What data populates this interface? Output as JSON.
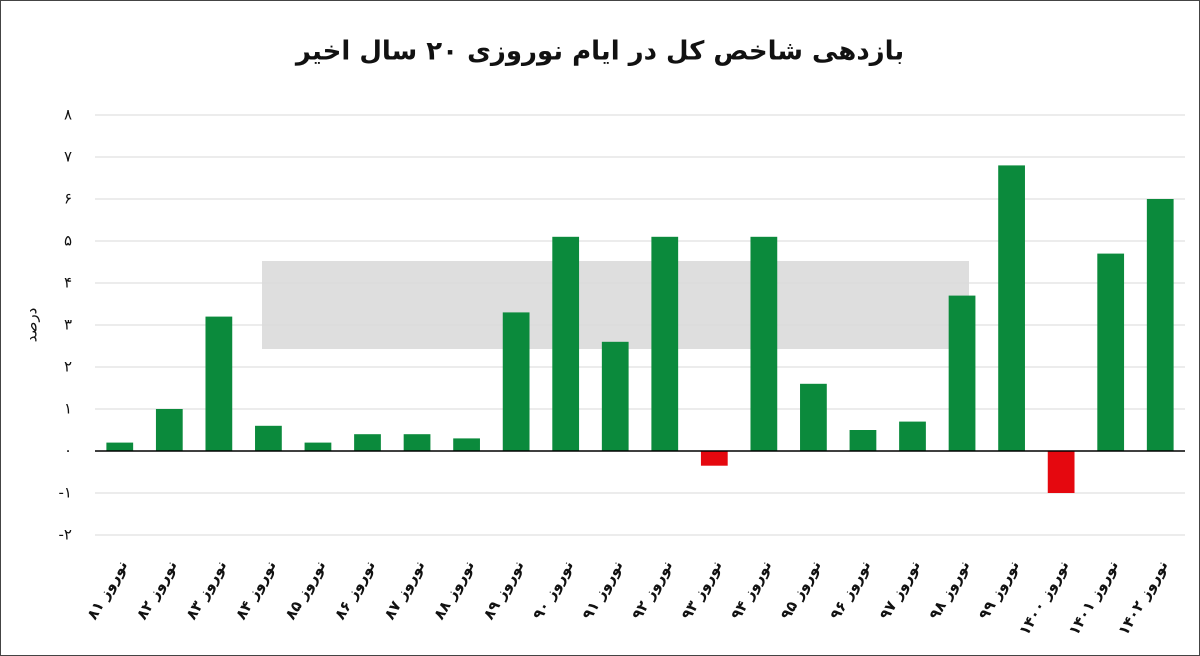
{
  "chart_data": {
    "type": "bar",
    "title": "بازدهی شاخص کل در ایام نوروزی ۲۰ سال اخیر",
    "y_label": "درصد",
    "categories": [
      "نوروز ۸۱",
      "نوروز ۸۲",
      "نوروز ۸۳",
      "نوروز ۸۴",
      "نوروز ۸۵",
      "نوروز ۸۶",
      "نوروز ۸۷",
      "نوروز ۸۸",
      "نوروز ۸۹",
      "نوروز ۹۰",
      "نوروز ۹۱",
      "نوروز ۹۲",
      "نوروز ۹۳",
      "نوروز ۹۴",
      "نوروز ۹۵",
      "نوروز ۹۶",
      "نوروز ۹۷",
      "نوروز ۹۸",
      "نوروز ۹۹",
      "نوروز ۱۴۰۰",
      "نوروز ۱۴۰۱",
      "نوروز ۱۴۰۲"
    ],
    "values": [
      0.2,
      1.0,
      3.2,
      0.6,
      0.2,
      0.4,
      0.4,
      0.3,
      3.3,
      5.1,
      2.6,
      5.1,
      -0.35,
      5.1,
      1.6,
      0.5,
      0.7,
      3.7,
      6.8,
      -1.0,
      4.7,
      6.0
    ],
    "color": "#0b8a3c",
    "negative_color": "#e5080f",
    "ylim": [
      -2,
      8
    ],
    "yticks": [
      {
        "value": -2,
        "label": "-۲"
      },
      {
        "value": -1,
        "label": "-۱"
      },
      {
        "value": 0,
        "label": "۰"
      },
      {
        "value": 1,
        "label": "۱"
      },
      {
        "value": 2,
        "label": "۲"
      },
      {
        "value": 3,
        "label": "۳"
      },
      {
        "value": 4,
        "label": "۴"
      },
      {
        "value": 5,
        "label": "۵"
      },
      {
        "value": 6,
        "label": "۶"
      },
      {
        "value": 7,
        "label": "۷"
      },
      {
        "value": 8,
        "label": "۸"
      }
    ],
    "grid": true
  }
}
